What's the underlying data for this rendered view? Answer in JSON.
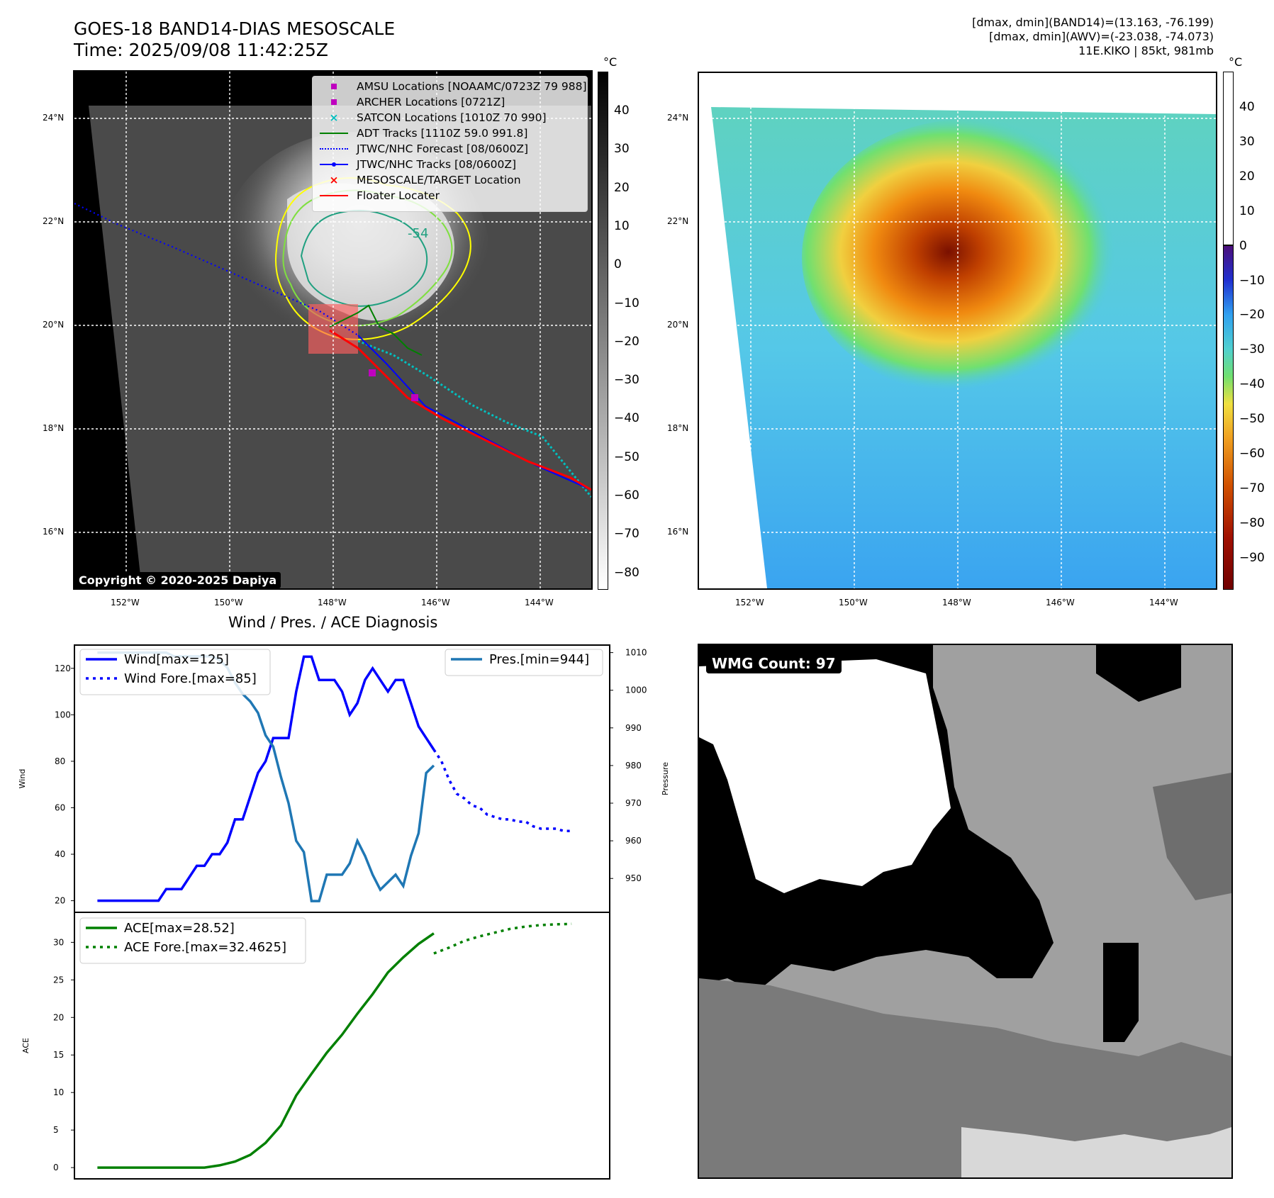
{
  "header": {
    "title": "GOES-18 BAND14-DIAS MESOSCALE",
    "time": "Time: 2025/09/08 11:42:25Z",
    "info_line1": "[dmax, dmin](BAND14)=(13.163, -76.199)",
    "info_line2": "[dmax, dmin](AWV)=(-23.038, -74.073)",
    "info_line3": "11E.KIKO | 85kt, 981mb"
  },
  "map_axes": {
    "lon_ticks": [
      "152°W",
      "150°W",
      "148°W",
      "146°W",
      "144°W"
    ],
    "lat_ticks": [
      "24°N",
      "22°N",
      "20°N",
      "18°N",
      "16°N"
    ]
  },
  "colorbar_left": {
    "unit": "°C",
    "ticks": [
      "40",
      "30",
      "20",
      "10",
      "0",
      "−10",
      "−20",
      "−30",
      "−40",
      "−50",
      "−60",
      "−70",
      "−80"
    ]
  },
  "colorbar_right": {
    "unit": "°C",
    "ticks": [
      "40",
      "30",
      "20",
      "10",
      "0",
      "−10",
      "−20",
      "−30",
      "−40",
      "−50",
      "−60",
      "−70",
      "−80",
      "−90"
    ]
  },
  "legend": {
    "items": [
      {
        "label": "AMSU Locations [NOAAMC/0723Z 79 988]",
        "marker": "square",
        "color": "#bf00bf"
      },
      {
        "label": "ARCHER Locations [0721Z]",
        "marker": "square",
        "color": "#bf00bf"
      },
      {
        "label": "SATCON Locations [1010Z 70 990]",
        "marker": "x",
        "color": "#00bfbf"
      },
      {
        "label": "ADT Tracks [1110Z 59.0 991.8]",
        "marker": "line",
        "color": "#008000"
      },
      {
        "label": "JTWC/NHC Forecast [08/0600Z]",
        "marker": "dotted",
        "color": "#0000ff"
      },
      {
        "label": "JTWC/NHC Tracks [08/0600Z]",
        "marker": "line-dot",
        "color": "#0000ff"
      },
      {
        "label": "MESOSCALE/TARGET Location",
        "marker": "x",
        "color": "#ff0000"
      },
      {
        "label": "Floater Locater",
        "marker": "line",
        "color": "#ff0000"
      }
    ]
  },
  "contour_label": "-54",
  "copyright": "Copyright © 2020-2025 Dapiya",
  "diag_title": "Wind / Pres. / ACE Diagnosis",
  "wmg": {
    "label": "WMG Count: 97"
  },
  "chart_data": [
    {
      "type": "line",
      "title": "Wind / Pres. / ACE Diagnosis",
      "ylabel": "Wind",
      "y2label": "Pressure",
      "ylim": [
        15,
        130
      ],
      "y2lim": [
        941,
        1012
      ],
      "xlim": [
        0,
        70
      ],
      "yticks": [
        20,
        40,
        60,
        80,
        100,
        120
      ],
      "y2ticks": [
        950,
        960,
        970,
        980,
        990,
        1000,
        1010
      ],
      "series": [
        {
          "name": "Wind[max=125]",
          "color": "#0000ff",
          "style": "solid",
          "x": [
            3,
            7,
            8,
            9,
            10,
            11,
            12,
            13,
            14,
            15,
            16,
            17,
            18,
            19,
            20,
            21,
            22,
            23,
            24,
            25,
            26,
            27,
            28,
            29,
            30,
            31,
            32,
            33,
            34,
            35,
            36,
            37,
            38,
            39,
            40,
            41,
            42,
            43,
            44,
            45,
            46,
            47
          ],
          "values": [
            20,
            20,
            20,
            20,
            20,
            20,
            25,
            25,
            25,
            30,
            35,
            35,
            40,
            40,
            45,
            55,
            55,
            65,
            75,
            80,
            90,
            90,
            90,
            110,
            125,
            125,
            115,
            115,
            115,
            110,
            100,
            105,
            115,
            120,
            115,
            110,
            115,
            115,
            105,
            95,
            90,
            85
          ]
        },
        {
          "name": "Wind Fore.[max=85]",
          "color": "#0000ff",
          "style": "dotted",
          "x": [
            47,
            48,
            49,
            50,
            51,
            52,
            53,
            54,
            55,
            56,
            57,
            58,
            59,
            60,
            61,
            62,
            63,
            64,
            65
          ],
          "values": [
            85,
            80,
            72,
            66,
            64,
            61,
            60,
            57,
            56,
            55,
            55,
            54,
            54,
            52,
            51,
            51,
            51,
            50,
            50
          ]
        },
        {
          "name": "Pres.[min=944]",
          "color": "#1f77b4",
          "style": "solid",
          "axis": "right",
          "x": [
            3,
            4,
            5,
            6,
            7,
            8,
            9,
            10,
            11,
            12,
            13,
            14,
            15,
            16,
            17,
            18,
            19,
            20,
            21,
            22,
            23,
            24,
            25,
            26,
            27,
            28,
            29,
            30,
            31,
            32,
            33,
            34,
            35,
            36,
            37,
            38,
            39,
            40,
            41,
            42,
            43,
            44,
            45,
            46,
            47
          ],
          "values": [
            1010,
            1010,
            1010,
            1010,
            1010,
            1010,
            1010,
            1010,
            1010,
            1010,
            1009,
            1009,
            1009,
            1009,
            1009,
            1009,
            1008,
            1006,
            1002,
            999,
            997,
            994,
            988,
            985,
            977,
            970,
            960,
            957,
            944,
            944,
            951,
            951,
            951,
            954,
            960,
            956,
            951,
            947,
            949,
            951,
            948,
            956,
            962,
            978,
            980
          ]
        }
      ]
    },
    {
      "type": "line",
      "ylabel": "ACE",
      "ylim": [
        -1.5,
        34
      ],
      "xlim": [
        0,
        70
      ],
      "yticks": [
        0,
        5,
        10,
        15,
        20,
        25,
        30
      ],
      "series": [
        {
          "name": "ACE[max=28.52]",
          "color": "#008000",
          "style": "solid",
          "x": [
            3,
            17,
            19,
            21,
            23,
            25,
            27,
            29,
            31,
            33,
            35,
            37,
            39,
            41,
            43,
            45,
            47
          ],
          "values": [
            0,
            0,
            0.3,
            0.8,
            1.7,
            3.3,
            5.6,
            9.6,
            12.5,
            15.3,
            17.7,
            20.5,
            23.1,
            26.0,
            28.0,
            29.8,
            31.2
          ]
        },
        {
          "name": "ACE Fore.[max=32.4625]",
          "color": "#008000",
          "style": "dotted",
          "x": [
            47,
            49,
            51,
            53,
            55,
            57,
            59,
            61,
            63,
            65
          ],
          "values": [
            28.52,
            29.3,
            30.2,
            30.8,
            31.3,
            31.8,
            32.1,
            32.3,
            32.4,
            32.4625
          ]
        }
      ]
    }
  ]
}
